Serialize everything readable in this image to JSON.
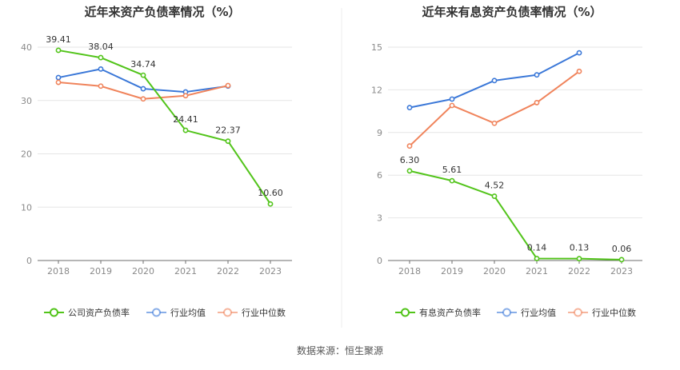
{
  "source_label": "数据来源：恒生聚源",
  "chart_data": [
    {
      "type": "line",
      "title": "近年来资产负债率情况（%）",
      "categories": [
        "2018",
        "2019",
        "2020",
        "2021",
        "2022",
        "2023"
      ],
      "ylim": [
        0,
        40
      ],
      "yticks": [
        0,
        10,
        20,
        30,
        40
      ],
      "ytick_labels": [
        "0",
        "10",
        "20",
        "30",
        "40"
      ],
      "grid": true,
      "legend_position": "bottom",
      "series": [
        {
          "name": "公司资产负债率",
          "color": "#52c41a",
          "values": [
            39.41,
            38.04,
            34.74,
            24.41,
            22.37,
            10.6
          ],
          "labels": [
            "39.41",
            "38.04",
            "34.74",
            "24.41",
            "22.37",
            "10.60"
          ]
        },
        {
          "name": "行业均值",
          "color": "#3b78d8",
          "values": [
            34.3,
            35.9,
            32.2,
            31.6,
            32.7,
            null
          ]
        },
        {
          "name": "行业中位数",
          "color": "#f0845c",
          "values": [
            33.4,
            32.7,
            30.3,
            30.9,
            32.8,
            null
          ]
        }
      ]
    },
    {
      "type": "line",
      "title": "近年来有息资产负债率情况（%）",
      "categories": [
        "2018",
        "2019",
        "2020",
        "2021",
        "2022",
        "2023"
      ],
      "ylim": [
        0,
        15
      ],
      "yticks": [
        0,
        3,
        6,
        9,
        12,
        15
      ],
      "ytick_labels": [
        "0",
        "3",
        "6",
        "9",
        "12",
        "15"
      ],
      "grid": true,
      "legend_position": "bottom",
      "series": [
        {
          "name": "有息资产负债率",
          "color": "#52c41a",
          "values": [
            6.3,
            5.61,
            4.52,
            0.14,
            0.13,
            0.06
          ],
          "labels": [
            "6.30",
            "5.61",
            "4.52",
            "0.14",
            "0.13",
            "0.06"
          ]
        },
        {
          "name": "行业均值",
          "color": "#3b78d8",
          "values": [
            10.75,
            11.35,
            12.65,
            13.05,
            14.6,
            null
          ]
        },
        {
          "name": "行业中位数",
          "color": "#f0845c",
          "values": [
            8.05,
            10.9,
            9.65,
            11.1,
            13.3,
            null
          ]
        }
      ]
    }
  ]
}
